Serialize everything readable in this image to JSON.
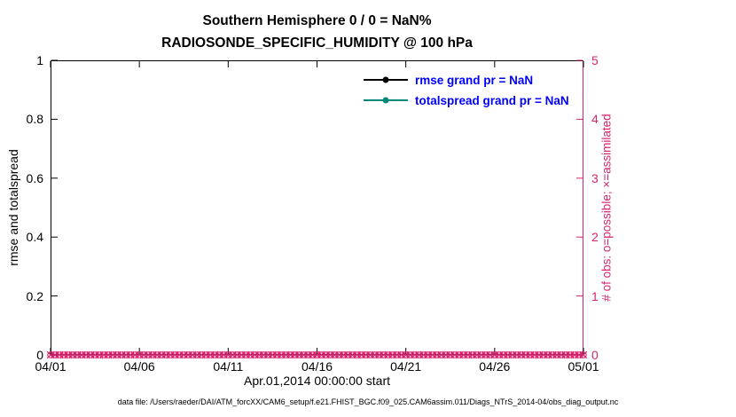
{
  "colors": {
    "axis_black": "#000000",
    "obs_crimson": "#d6246e",
    "spread_teal": "#008878",
    "legend_text_blue": "#0000ff",
    "background": "#ffffff"
  },
  "chart_data": {
    "type": "line",
    "title": "Southern Hemisphere 0 / 0 = NaN%",
    "subtitle": "RADIOSONDE_SPECIFIC_HUMIDITY @ 100 hPa",
    "xlabel": "Apr.01,2014 00:00:00 start",
    "ylabel_left": "rmse and totalspread",
    "ylabel_right": "# of obs: o=possible; ×=assimilated",
    "grid": "off",
    "box": "on",
    "legend_position": "inside upper-right, no box",
    "x_tick_labels": [
      "04/01",
      "04/06",
      "04/11",
      "04/16",
      "04/21",
      "04/26",
      "05/01"
    ],
    "x_tick_days": [
      0,
      5,
      10,
      15,
      20,
      25,
      30
    ],
    "x_range_days": [
      0,
      30
    ],
    "y_left_tick_labels": [
      "0",
      "0.2",
      "0.4",
      "0.6",
      "0.8",
      "1"
    ],
    "y_left_tick_values": [
      0,
      0.2,
      0.4,
      0.6,
      0.8,
      1
    ],
    "y_left_range": [
      0,
      1
    ],
    "y_right_tick_labels": [
      "0",
      "1",
      "2",
      "3",
      "4",
      "5"
    ],
    "y_right_tick_values": [
      0,
      1,
      2,
      3,
      4,
      5
    ],
    "y_right_range": [
      0,
      5
    ],
    "series": [
      {
        "name": "rmse",
        "legend": "rmse grand pr = NaN",
        "color": "#000000",
        "marker": "filled-circle",
        "axis": "left",
        "values": []
      },
      {
        "name": "totalspread",
        "legend": "totalspread grand pr = NaN",
        "color": "#008878",
        "marker": "filled-circle",
        "axis": "left",
        "values": []
      },
      {
        "name": "possible_obs",
        "marker": "o",
        "color": "#d6246e",
        "axis": "right",
        "constant_value": 0,
        "n_points": 121
      },
      {
        "name": "assimilated_obs",
        "marker": "x",
        "color": "#d6246e",
        "axis": "right",
        "constant_value": 0,
        "n_points": 121
      }
    ]
  },
  "footer": {
    "text": "data file: /Users/raeder/DAI/ATM_forcXX/CAM6_setup/f.e21.FHIST_BGC.f09_025.CAM6assim.011/Diags_NTrS_2014-04/obs_diag_output.nc"
  }
}
